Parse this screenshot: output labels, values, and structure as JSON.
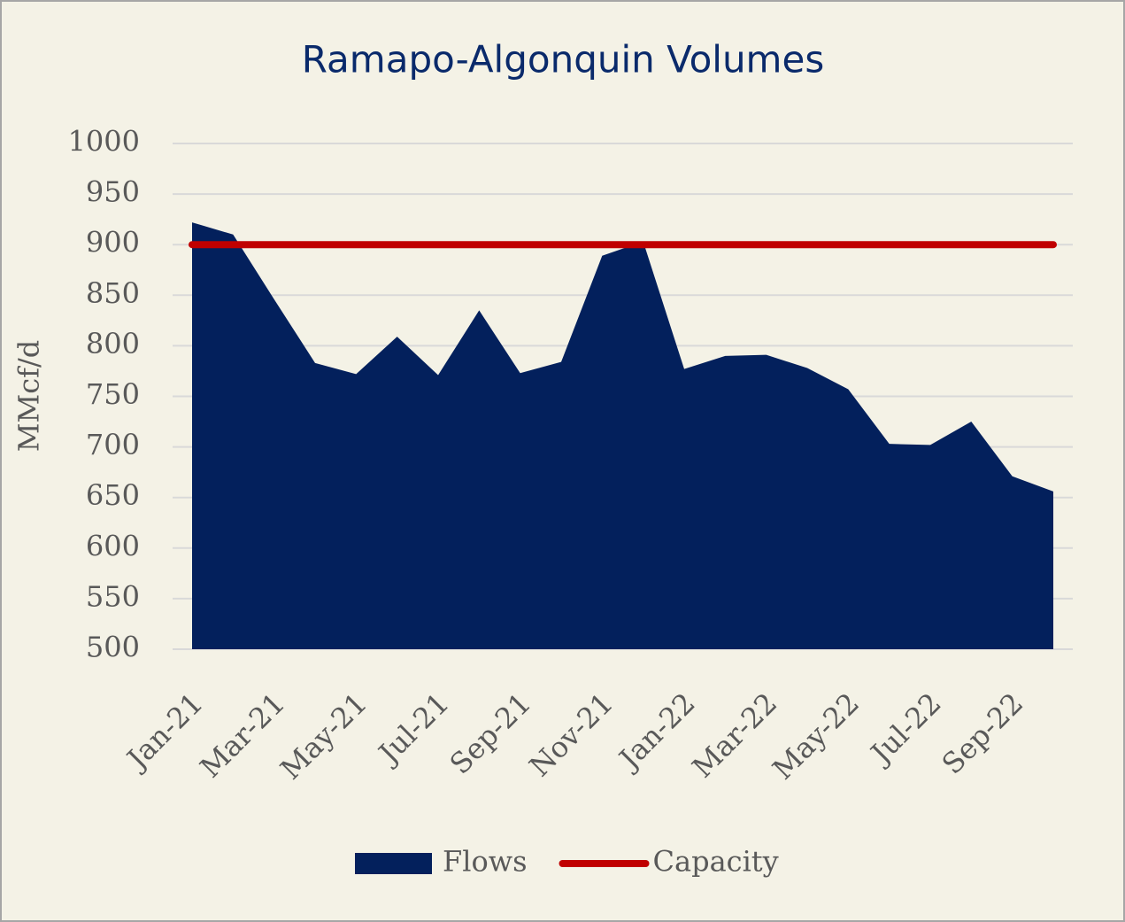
{
  "chart_data": {
    "type": "area",
    "title": "Ramapo-Algonquin Volumes",
    "y_label": "MMcf/d",
    "categories": [
      "Jan-21",
      null,
      "Mar-21",
      null,
      "May-21",
      null,
      "Jul-21",
      null,
      "Sep-21",
      null,
      "Nov-21",
      null,
      "Jan-22",
      null,
      "Mar-22",
      null,
      "May-22",
      null,
      "Jul-22",
      null,
      "Sep-22",
      null
    ],
    "series": [
      {
        "name": "Flows",
        "type": "area",
        "color": "#03205c",
        "values": [
          922,
          910,
          846,
          783,
          772,
          809,
          771,
          835,
          773,
          784,
          889,
          903,
          777,
          790,
          791,
          778,
          757,
          703,
          702,
          725,
          671,
          656
        ]
      },
      {
        "name": "Capacity",
        "type": "line",
        "color": "#c00000",
        "values": [
          900,
          900,
          900,
          900,
          900,
          900,
          900,
          900,
          900,
          900,
          900,
          900,
          900,
          900,
          900,
          900,
          900,
          900,
          900,
          900,
          900,
          900
        ]
      }
    ],
    "ylim": [
      500,
      1000
    ],
    "yticks": [
      500,
      550,
      600,
      650,
      700,
      750,
      800,
      850,
      900,
      950,
      1000
    ],
    "grid": true,
    "legend": "bottom"
  }
}
